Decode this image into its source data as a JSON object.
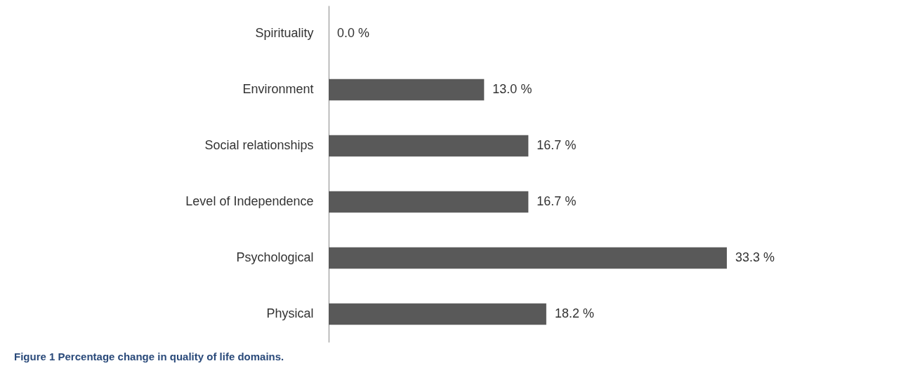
{
  "chart_data": {
    "type": "bar",
    "orientation": "horizontal",
    "title": "Figure 1 Percentage change in quality of life domains.",
    "categories": [
      "Spirituality",
      "Environment",
      "Social relationships",
      "Level of Independence",
      "Psychological",
      "Physical"
    ],
    "values": [
      0.0,
      13.0,
      16.7,
      16.7,
      33.3,
      18.2
    ],
    "value_labels": [
      "0.0 %",
      "13.0 %",
      "16.7 %",
      "16.7 %",
      "33.3 %",
      "18.2 %"
    ],
    "color": "#595959"
  }
}
